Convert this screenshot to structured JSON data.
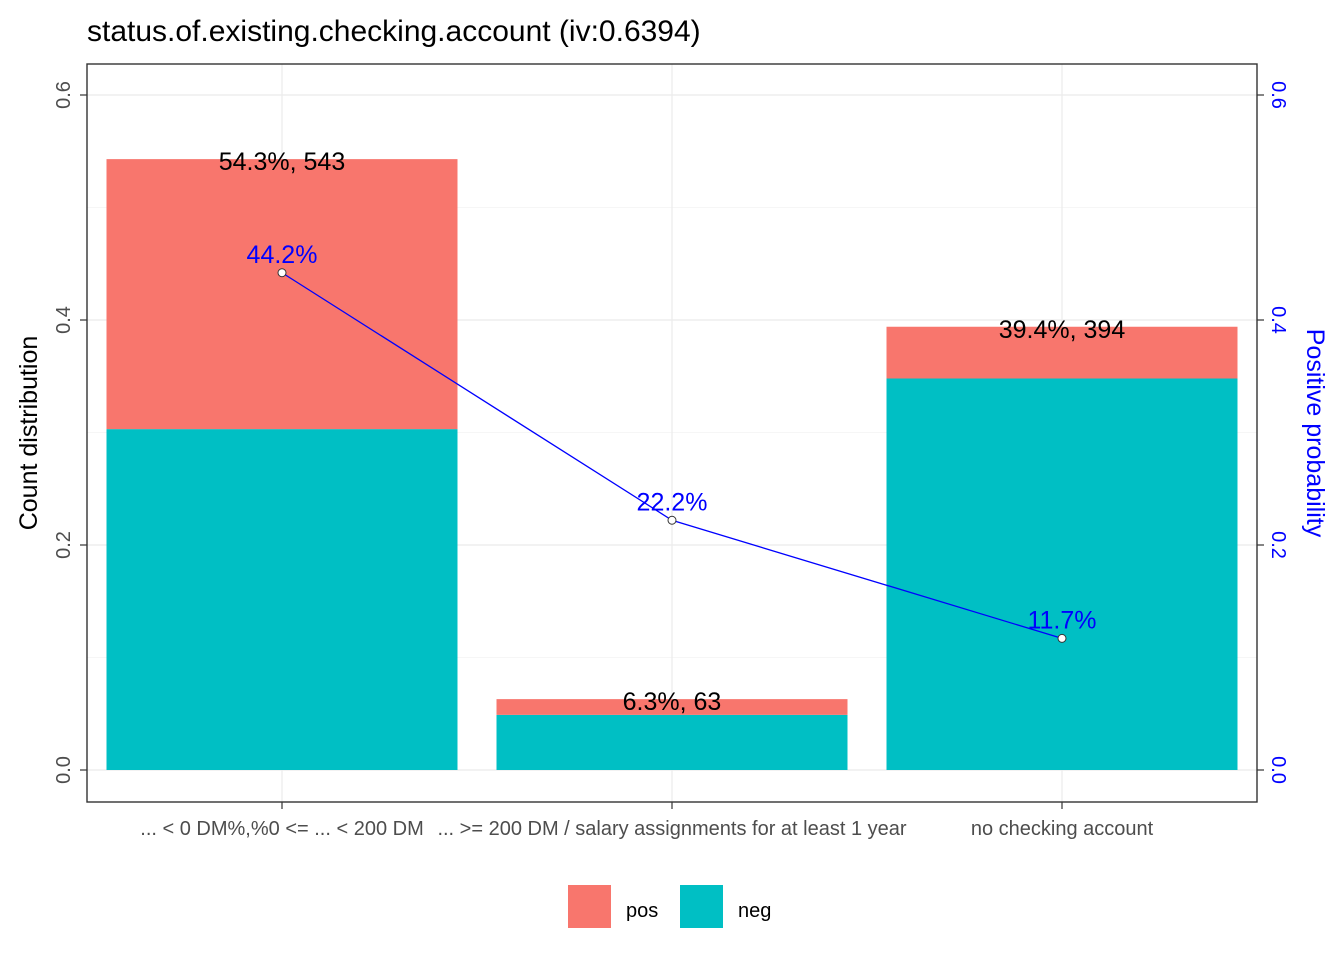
{
  "chart_data": {
    "type": "bar",
    "title": "status.of.existing.checking.account  (iv:0.6394)",
    "categories": [
      "... < 0 DM%,%0 <= ... < 200 DM",
      "... >= 200 DM / salary assignments for at least 1 year",
      "no checking account"
    ],
    "series": [
      {
        "name": "pos",
        "values": [
          0.24,
          0.014,
          0.046
        ]
      },
      {
        "name": "neg",
        "values": [
          0.303,
          0.049,
          0.348
        ]
      }
    ],
    "line": {
      "values": [
        0.442,
        0.222,
        0.117
      ],
      "labels": [
        "44.2%",
        "22.2%",
        "11.7%"
      ]
    },
    "bar_labels": [
      "54.3%, 543",
      "6.3%, 63",
      "39.4%, 394"
    ],
    "ylabel": "Count distribution",
    "y2label": "Positive probability",
    "ylim": [
      0,
      0.6
    ],
    "y_ticks": [
      "0.0",
      "0.2",
      "0.4",
      "0.6"
    ],
    "grid": true,
    "legend_position": "bottom",
    "colors": {
      "pos": "#f8766d",
      "neg": "#00bfc4",
      "line": "#0000ff",
      "axis_text": "#4d4d4d",
      "grid": "#ebebeb"
    }
  }
}
